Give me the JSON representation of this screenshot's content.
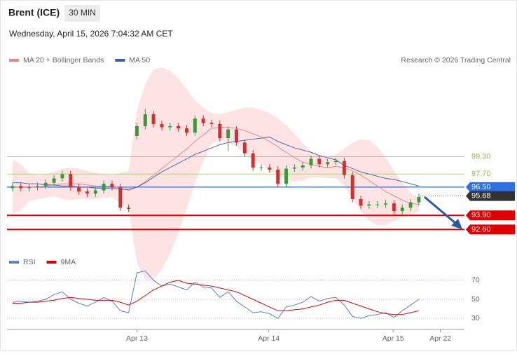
{
  "header": {
    "title": "Brent (ICE)",
    "interval": "30 MIN",
    "datetime": "Wednesday, April 15, 2026 7:04:32 AM CET",
    "credit": "Research © 2026 Trading Central"
  },
  "chart_data": [
    {
      "type": "candlestick",
      "xlim": [
        0,
        55
      ],
      "ylim": [
        90.5,
        107.9
      ],
      "up_color": "#3a9a3a",
      "down_color": "#d32f2f",
      "band_color": "#fde3e3",
      "open": [
        96.4,
        96.6,
        96.4,
        96.5,
        96.6,
        96.9,
        97.3,
        97.7,
        96.5,
        96.1,
        95.9,
        96.2,
        96.8,
        96.5,
        94.6,
        101.2,
        102.1,
        103.2,
        102.3,
        102.0,
        102.1,
        101.9,
        101.5,
        102.8,
        102.4,
        102.3,
        101.0,
        101.8,
        100.6,
        99.6,
        98.3,
        98.3,
        98.1,
        96.8,
        98.2,
        98.3,
        98.5,
        99.1,
        98.6,
        98.8,
        98.9,
        97.6,
        95.4,
        94.8,
        94.9,
        94.9,
        95.0,
        94.3,
        94.6,
        95.1
      ],
      "high": [
        96.9,
        96.9,
        96.8,
        96.9,
        97.2,
        97.6,
        98.0,
        98.0,
        96.8,
        96.4,
        96.5,
        97.1,
        97.1,
        96.8,
        94.9,
        102.4,
        103.7,
        103.5,
        102.6,
        102.4,
        102.4,
        102.2,
        103.1,
        103.1,
        102.7,
        102.6,
        102.1,
        102.1,
        100.9,
        99.9,
        98.6,
        98.6,
        98.4,
        98.5,
        98.6,
        98.8,
        99.4,
        99.4,
        99.1,
        99.2,
        99.2,
        97.9,
        95.7,
        95.2,
        95.2,
        95.3,
        95.3,
        94.9,
        95.4,
        95.9
      ],
      "low": [
        96.1,
        96.1,
        96.1,
        96.2,
        96.3,
        96.6,
        97.0,
        96.2,
        95.8,
        95.6,
        95.6,
        95.9,
        96.2,
        94.3,
        94.2,
        100.9,
        101.8,
        102.0,
        101.7,
        101.7,
        101.6,
        101.2,
        101.2,
        102.1,
        102.0,
        100.7,
        99.8,
        100.3,
        99.3,
        98.0,
        98.0,
        97.8,
        96.5,
        96.5,
        97.9,
        98.0,
        98.2,
        98.3,
        98.3,
        98.5,
        97.3,
        95.1,
        94.5,
        94.5,
        94.6,
        94.6,
        94.0,
        94.0,
        94.3,
        94.8
      ],
      "close": [
        96.6,
        96.4,
        96.5,
        96.6,
        96.9,
        97.3,
        97.7,
        96.5,
        96.1,
        95.9,
        96.2,
        96.8,
        96.5,
        94.6,
        94.5,
        102.1,
        103.2,
        102.3,
        102.0,
        102.1,
        101.9,
        101.5,
        102.8,
        102.4,
        102.3,
        101.0,
        101.8,
        100.6,
        99.6,
        98.3,
        98.3,
        98.1,
        96.8,
        98.2,
        98.3,
        98.5,
        99.1,
        98.6,
        98.8,
        98.9,
        97.6,
        95.4,
        94.8,
        94.9,
        94.9,
        95.0,
        94.3,
        94.6,
        95.1,
        95.6
      ],
      "series": [
        {
          "name": "MA 20 + Bollinger Bands",
          "color": "#f08080",
          "values": [
            96.5,
            96.5,
            96.5,
            96.5,
            96.6,
            96.7,
            96.8,
            96.8,
            96.8,
            96.7,
            96.6,
            96.6,
            96.6,
            96.4,
            96.2,
            96.5,
            97.0,
            97.6,
            98.2,
            98.8,
            99.4,
            100.0,
            100.7,
            101.3,
            101.9,
            102.0,
            102.0,
            101.9,
            101.7,
            101.4,
            101.1,
            100.7,
            100.2,
            99.7,
            99.2,
            98.8,
            98.6,
            98.4,
            98.3,
            98.4,
            98.3,
            98.0,
            97.6,
            97.1,
            96.6,
            96.1,
            95.7,
            95.3,
            95.0,
            94.9
          ],
          "upper": [
            99.0,
            98.6,
            97.8,
            97.6,
            97.7,
            97.9,
            98.2,
            98.3,
            98.2,
            98.0,
            97.8,
            97.7,
            97.6,
            97.8,
            98.0,
            103.5,
            106.0,
            107.3,
            107.5,
            107.2,
            106.5,
            105.5,
            104.5,
            103.8,
            103.3,
            103.2,
            103.4,
            103.6,
            103.8,
            103.8,
            103.6,
            103.3,
            102.8,
            102.2,
            101.4,
            100.5,
            99.8,
            99.4,
            99.3,
            99.5,
            100.0,
            100.6,
            100.9,
            100.8,
            100.2,
            99.2,
            98.0,
            96.9,
            96.0,
            95.5
          ],
          "lower": [
            94.0,
            94.4,
            95.2,
            95.4,
            95.5,
            95.7,
            95.4,
            95.3,
            95.4,
            95.4,
            95.4,
            95.5,
            95.6,
            95.0,
            94.4,
            89.5,
            88.0,
            88.0,
            88.9,
            90.4,
            92.3,
            94.5,
            96.9,
            98.8,
            100.5,
            100.8,
            100.6,
            100.2,
            99.6,
            99.0,
            98.6,
            98.1,
            97.6,
            97.2,
            97.0,
            97.1,
            97.4,
            97.4,
            97.3,
            97.3,
            96.6,
            95.4,
            94.3,
            93.4,
            93.0,
            93.0,
            93.4,
            93.7,
            94.0,
            94.3
          ]
        },
        {
          "name": "MA 50",
          "color": "#3b5fa8",
          "values": [
            96.9,
            96.9,
            96.8,
            96.8,
            96.7,
            96.7,
            96.6,
            96.6,
            96.5,
            96.5,
            96.4,
            96.4,
            96.4,
            96.3,
            96.3,
            96.5,
            96.9,
            97.4,
            97.9,
            98.3,
            98.7,
            99.1,
            99.5,
            99.8,
            100.1,
            100.4,
            100.6,
            100.7,
            100.8,
            100.9,
            101.0,
            101.1,
            100.7,
            100.4,
            100.1,
            99.9,
            99.7,
            99.4,
            99.2,
            99.0,
            98.5,
            98.2,
            97.9,
            97.7,
            97.5,
            97.3,
            97.2,
            97.0,
            96.8,
            96.6
          ]
        }
      ],
      "levels": [
        {
          "value": 99.3,
          "label": "99.30",
          "color": "#8bc34a",
          "style": "plain"
        },
        {
          "value": 97.7,
          "label": "97.70",
          "color": "#8bc34a",
          "style": "plain"
        },
        {
          "value": 96.5,
          "label": "96.50",
          "color": "#2f6fe0",
          "style": "tag"
        },
        {
          "value": 95.68,
          "label": "95.68",
          "color": "#333333",
          "style": "dotted-tag"
        },
        {
          "value": 93.9,
          "label": "93.90",
          "color": "#e00000",
          "style": "thick-tag"
        },
        {
          "value": 92.6,
          "label": "92.60",
          "color": "#e00000",
          "style": "thick-tag"
        }
      ]
    },
    {
      "type": "line",
      "xlim": [
        0,
        55
      ],
      "ylim": [
        22,
        81
      ],
      "yticks": [
        30,
        50,
        70
      ],
      "grid": true,
      "xticks": [
        {
          "value": 15.5,
          "label": "Apr 13"
        },
        {
          "value": 31.4,
          "label": "Apr 14"
        },
        {
          "value": 46.4,
          "label": "Apr 15"
        },
        {
          "value": 52.1,
          "label": "Apr 22"
        }
      ],
      "series": [
        {
          "name": "RSI",
          "color": "#5b7fd6",
          "values": [
            47,
            48,
            47,
            48,
            50,
            55,
            58,
            50,
            46,
            43,
            47,
            52,
            48,
            38,
            36,
            78,
            80,
            70,
            64,
            66,
            63,
            60,
            68,
            63,
            62,
            52,
            58,
            48,
            42,
            36,
            37,
            35,
            30,
            42,
            44,
            47,
            53,
            48,
            51,
            52,
            44,
            32,
            30,
            33,
            34,
            36,
            31,
            38,
            44,
            50
          ]
        },
        {
          "name": "9MA",
          "color": "#e00000",
          "values": [
            46,
            46,
            47,
            47,
            48,
            49,
            51,
            52,
            51,
            50,
            49,
            49,
            49,
            47,
            44,
            48,
            54,
            60,
            64,
            68,
            70,
            67,
            66,
            65,
            64,
            62,
            60,
            58,
            54,
            50,
            46,
            42,
            38,
            38,
            39,
            40,
            42,
            44,
            47,
            49,
            49,
            46,
            43,
            40,
            37,
            35,
            34,
            34,
            36,
            38
          ]
        }
      ]
    }
  ]
}
